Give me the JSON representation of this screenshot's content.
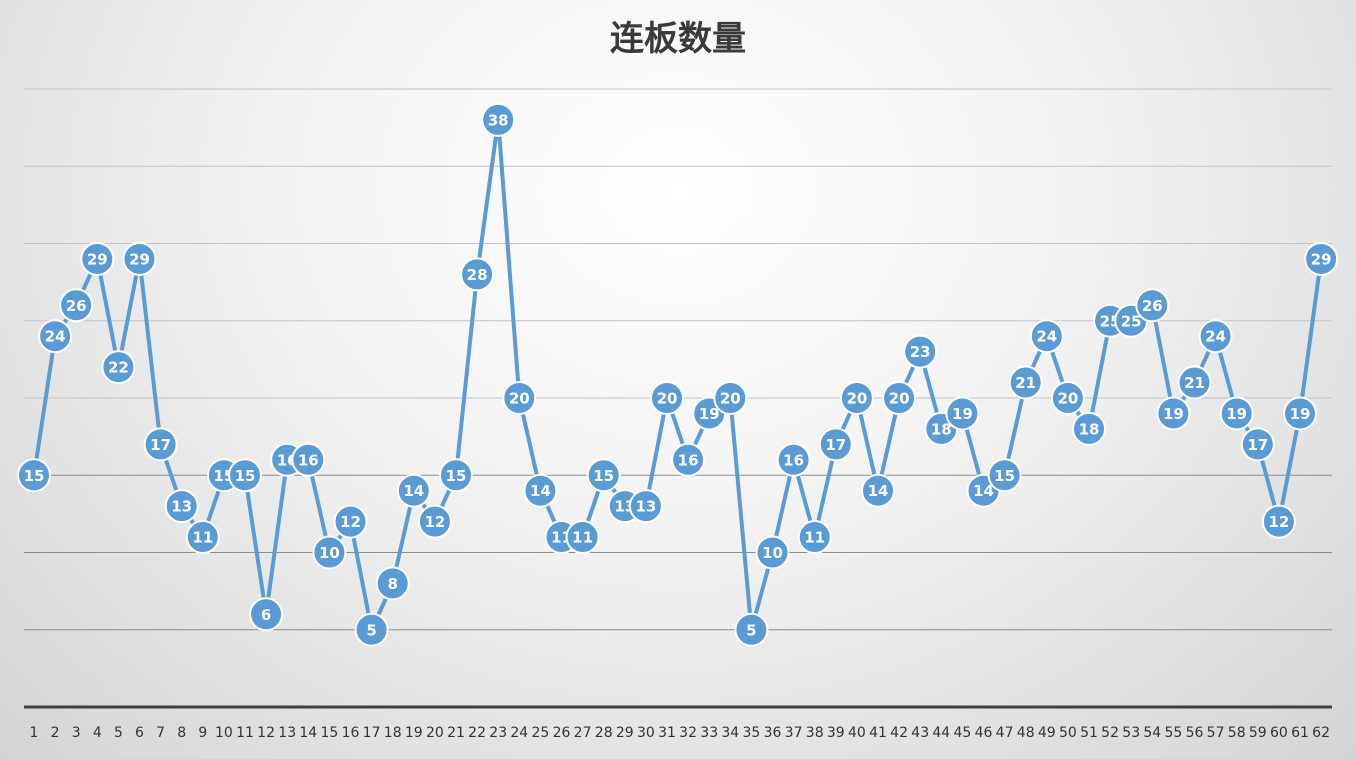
{
  "chart_data": {
    "type": "line",
    "title": "连板数量",
    "xlabel": "",
    "ylabel": "",
    "categories": [
      "1",
      "2",
      "3",
      "4",
      "5",
      "6",
      "7",
      "8",
      "9",
      "10",
      "11",
      "12",
      "13",
      "14",
      "15",
      "16",
      "17",
      "18",
      "19",
      "20",
      "21",
      "22",
      "23",
      "24",
      "25",
      "26",
      "27",
      "28",
      "29",
      "30",
      "31",
      "32",
      "33",
      "34",
      "35",
      "36",
      "37",
      "38",
      "39",
      "40",
      "41",
      "42",
      "43",
      "44",
      "45",
      "46",
      "47",
      "48",
      "49",
      "50",
      "51",
      "52",
      "53",
      "54",
      "55",
      "56",
      "57",
      "58",
      "59",
      "60",
      "61",
      "62"
    ],
    "series": [
      {
        "values": [
          15,
          24,
          26,
          29,
          22,
          29,
          17,
          13,
          11,
          15,
          15,
          6,
          16,
          16,
          10,
          12,
          5,
          8,
          14,
          12,
          15,
          28,
          38,
          20,
          14,
          11,
          11,
          15,
          13,
          13,
          20,
          16,
          19,
          20,
          5,
          10,
          16,
          11,
          17,
          20,
          14,
          20,
          23,
          18,
          19,
          14,
          15,
          21,
          24,
          20,
          18,
          25,
          25,
          26,
          19,
          21,
          24,
          19,
          17,
          12,
          19,
          29
        ]
      }
    ],
    "ylim": [
      0,
      40
    ],
    "gridlines": [
      5,
      10,
      15,
      20,
      25,
      30,
      35,
      40
    ],
    "grid": true,
    "data_labels": true,
    "legend": "none",
    "color": "#5b9bd5"
  }
}
